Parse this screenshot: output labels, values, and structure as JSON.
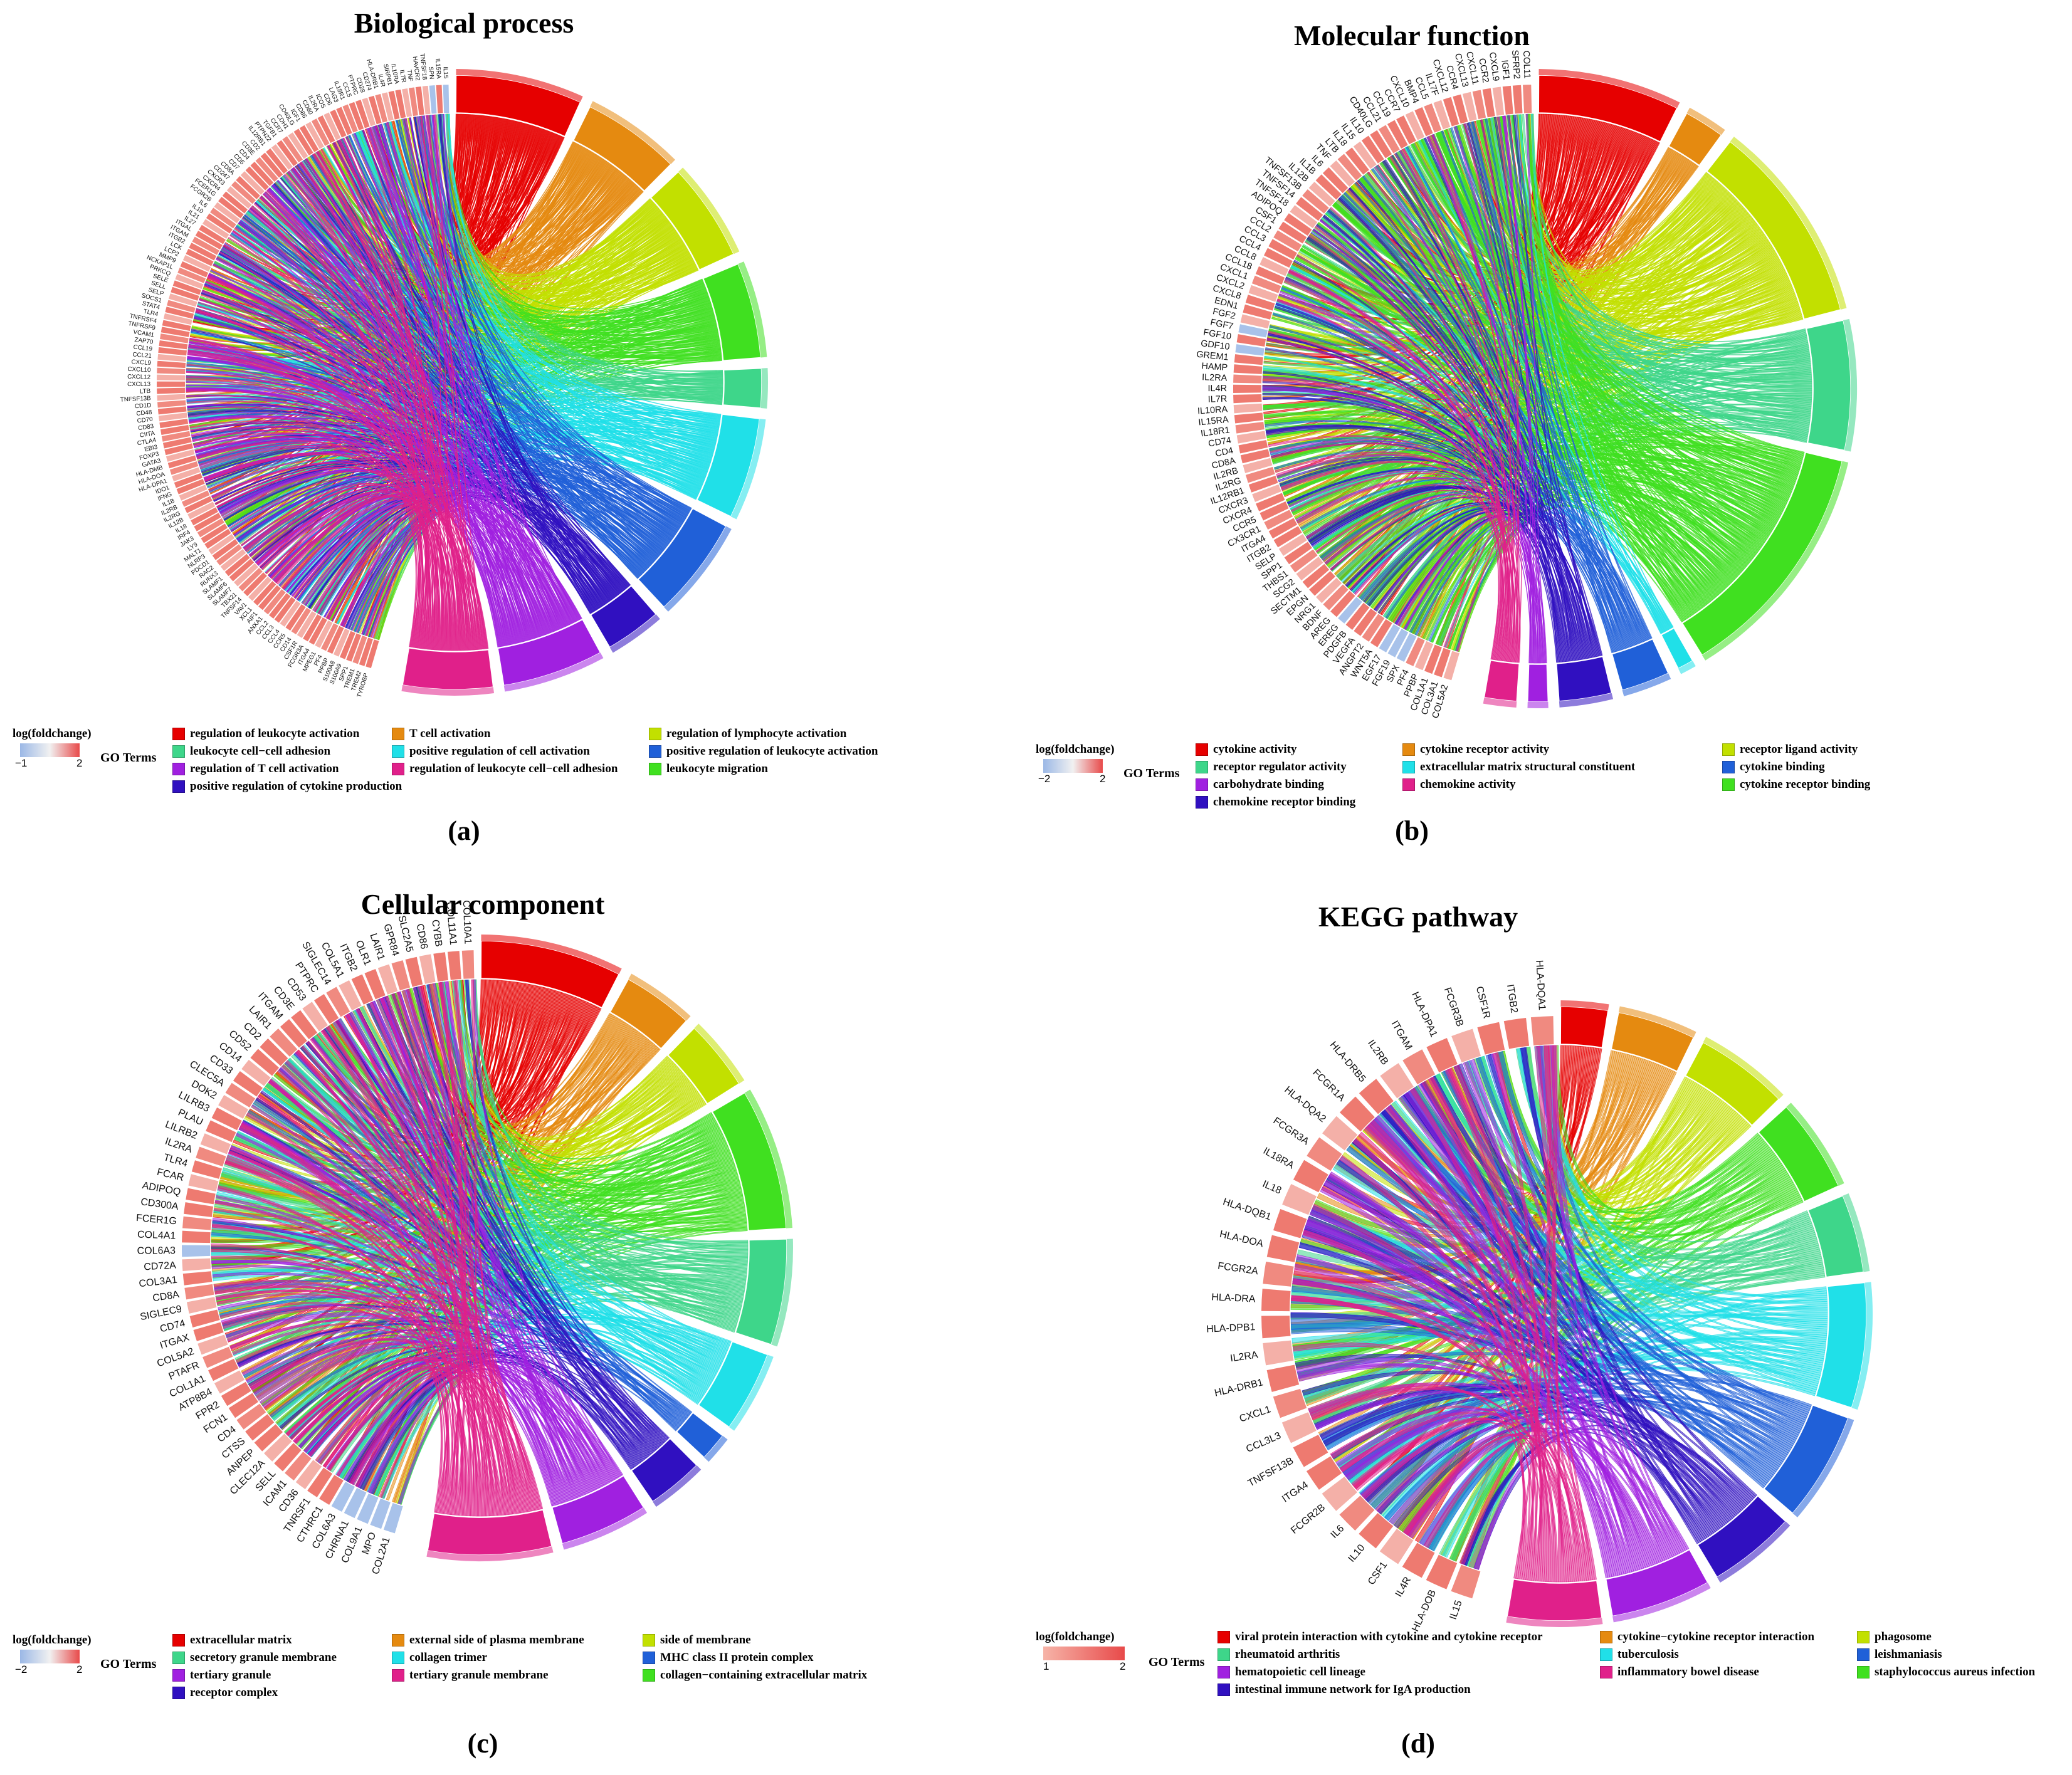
{
  "chart_data": [
    {
      "type": "chord",
      "title": "Biological process",
      "panel_label": "(a)",
      "scale": {
        "title": "log(foldchange)",
        "min_label": "−1",
        "max_label": "2",
        "colors": [
          "#9bb8e6",
          "#f1f1f1",
          "#e84a4a"
        ]
      },
      "legend_title": "GO Terms",
      "terms": [
        {
          "name": "regulation of leukocyte activation",
          "color": "#e60000",
          "weight": 4.5
        },
        {
          "name": "T cell activation",
          "color": "#e58a10",
          "weight": 3.5
        },
        {
          "name": "regulation of lymphocyte activation",
          "color": "#c2e000",
          "weight": 3.5
        },
        {
          "name": "leukocyte cell−cell adhesion",
          "color": "#3ed68a",
          "weight": 1.4
        },
        {
          "name": "positive regulation of cell activation",
          "color": "#20e0e8",
          "weight": 3.6
        },
        {
          "name": "positive regulation of leukocyte activation",
          "color": "#2060d8",
          "weight": 3.6
        },
        {
          "name": "regulation of T cell activation",
          "color": "#a020e0",
          "weight": 3.6
        },
        {
          "name": "regulation of leukocyte cell−cell adhesion",
          "color": "#e0208a",
          "weight": 3.2
        },
        {
          "name": "leukocyte migration",
          "color": "#40e020",
          "weight": 3.4
        },
        {
          "name": "positive regulation of cytokine production",
          "color": "#3010c0",
          "weight": 2.0
        }
      ],
      "arc_order": [
        0,
        1,
        2,
        8,
        3,
        4,
        5,
        9,
        6,
        7
      ],
      "genes": [
        "IL15",
        "IL15RA",
        "SPN",
        "TNFSF18",
        "HAVCR2",
        "TNF",
        "IL7R",
        "IL10RA",
        "SIRPB1",
        "IL4R",
        "HLA-DRB1",
        "CD274",
        "CD28",
        "PTPRC",
        "CCL5",
        "IL18R1",
        "LAG3",
        "CD6",
        "ICOS",
        "IL2RA",
        "CD80",
        "CD86",
        "IGF1",
        "CD40LG",
        "CDH1",
        "CCR7",
        "TGFB1",
        "PTPN22",
        "IL12RB1",
        "CD2",
        "CD3E",
        "CD4",
        "CD5",
        "CD7",
        "CD8A",
        "CD247",
        "CXCR3",
        "CXCR4",
        "FCER1G",
        "FCGR2B",
        "IL6",
        "IL10",
        "IL21",
        "IL27",
        "ITGAL",
        "ITGAM",
        "ITGB2",
        "LCK",
        "LCP2",
        "MMP9",
        "NCKAP1L",
        "PRKCQ",
        "SELE",
        "SELL",
        "SELP",
        "SOCS1",
        "STAT4",
        "TLR4",
        "TNFRSF4",
        "TNFRSF9",
        "VCAM1",
        "ZAP70",
        "CCL19",
        "CCL21",
        "CXCL9",
        "CXCL10",
        "CXCL12",
        "CXCL13",
        "LTB",
        "TNFSF13B",
        "CD1D",
        "CD48",
        "CD70",
        "CD83",
        "CIITA",
        "CTLA4",
        "EBI3",
        "FOXP3",
        "GATA3",
        "HLA-DMB",
        "HLA-DOA",
        "HLA-DPA1",
        "IDO1",
        "IFNG",
        "IL1B",
        "IL2RB",
        "IL2RG",
        "IL12B",
        "IL18",
        "IRF4",
        "JAK3",
        "LY9",
        "MALT1",
        "NLRP3",
        "PDCD1",
        "RAC2",
        "RUNX3",
        "SLAMF1",
        "SLAMF6",
        "SLAMF7",
        "TBX21",
        "TNFSF14",
        "VAV1",
        "XCL1",
        "AIF1",
        "ANXA1",
        "CCL2",
        "CCL3",
        "CCL4",
        "CCR5",
        "CD14",
        "CSF1R",
        "FCGR3A",
        "ITGA4",
        "MPEG1",
        "PF4",
        "PPBP",
        "S100A8",
        "S100A9",
        "SPP1",
        "TREM1",
        "TREM2",
        "TYROBP"
      ],
      "gene_colors": {
        "low": [
          "IL15",
          "SPN"
        ]
      }
    },
    {
      "type": "chord",
      "title": "Molecular function",
      "panel_label": "(b)",
      "scale": {
        "title": "log(foldchange)",
        "min_label": "−2",
        "max_label": "2",
        "colors": [
          "#9bb8e6",
          "#f1f1f1",
          "#e84a4a"
        ]
      },
      "legend_title": "GO Terms",
      "terms": [
        {
          "name": "cytokine activity",
          "color": "#e60000",
          "weight": 3.5
        },
        {
          "name": "cytokine receptor activity",
          "color": "#e58a10",
          "weight": 1.0
        },
        {
          "name": "receptor ligand activity",
          "color": "#c2e000",
          "weight": 5.0
        },
        {
          "name": "receptor regulator activity",
          "color": "#3ed68a",
          "weight": 3.2
        },
        {
          "name": "extracellular matrix structural constituent",
          "color": "#20e0e8",
          "weight": 0.4
        },
        {
          "name": "cytokine binding",
          "color": "#2060d8",
          "weight": 1.2
        },
        {
          "name": "carbohydrate binding",
          "color": "#a020e0",
          "weight": 0.5
        },
        {
          "name": "chemokine activity",
          "color": "#e0208a",
          "weight": 0.8
        },
        {
          "name": "cytokine receptor binding",
          "color": "#40e020",
          "weight": 6.0
        },
        {
          "name": "chemokine receptor binding",
          "color": "#3010c0",
          "weight": 1.3
        }
      ],
      "arc_order": [
        0,
        1,
        2,
        3,
        8,
        4,
        5,
        9,
        6,
        7
      ],
      "genes": [
        "COL11",
        "SFRP2",
        "IGF1",
        "CXCL9",
        "CCR2",
        "CXCL11",
        "CXCL13",
        "CCR4",
        "CXCL12",
        "IL17F",
        "CCL5",
        "BMP4",
        "CXCL10",
        "CCR7",
        "CCL19",
        "CCL21",
        "CD40LG",
        "IL10",
        "IL15",
        "IL18",
        "LTB",
        "TNF",
        "IL6",
        "IL1B",
        "IL12B",
        "TNFSF13B",
        "TNFSF14",
        "TNFSF18",
        "ADIPOQ",
        "CSF1",
        "CCL2",
        "CCL3",
        "CCL4",
        "CCL8",
        "CCL18",
        "CXCL1",
        "CXCL2",
        "CXCL8",
        "EDN1",
        "FGF2",
        "FGF7",
        "FGF10",
        "GDF10",
        "GREM1",
        "HAMP",
        "IL2RA",
        "IL4R",
        "IL7R",
        "IL10RA",
        "IL15RA",
        "IL18R1",
        "CD74",
        "CD4",
        "CD8A",
        "IL2RB",
        "IL2RG",
        "IL12RB1",
        "CXCR3",
        "CXCR4",
        "CCR5",
        "CX3CR1",
        "ITGA4",
        "ITGB2",
        "SELP",
        "SPP1",
        "THBS1",
        "SCG2",
        "SECTM1",
        "EPGN",
        "NRG1",
        "BDNF",
        "AREG",
        "EREG",
        "PDGFB",
        "VEGFA",
        "ANGPT2",
        "WNT5A",
        "EGF17",
        "FGF19",
        "SPX",
        "PF4",
        "PPBP",
        "COL1A1",
        "COL3A1",
        "COL5A2"
      ],
      "gene_colors": {
        "low": [
          "FGF19",
          "EGF17",
          "GDF10",
          "SPX",
          "FGF7",
          "EREG"
        ]
      }
    },
    {
      "type": "chord",
      "title": "Cellular component",
      "panel_label": "(c)",
      "scale": {
        "title": "log(foldchange)",
        "min_label": "−2",
        "max_label": "2",
        "colors": [
          "#9bb8e6",
          "#f1f1f1",
          "#e84a4a"
        ]
      },
      "legend_title": "GO Terms",
      "terms": [
        {
          "name": "extracellular matrix",
          "color": "#e60000",
          "weight": 4.0
        },
        {
          "name": "external side of plasma membrane",
          "color": "#e58a10",
          "weight": 2.0
        },
        {
          "name": "side of membrane",
          "color": "#c2e000",
          "weight": 2.0
        },
        {
          "name": "secretory granule membrane",
          "color": "#3ed68a",
          "weight": 3.0
        },
        {
          "name": "collagen trimer",
          "color": "#20e0e8",
          "weight": 2.3
        },
        {
          "name": "MHC class II protein complex",
          "color": "#2060d8",
          "weight": 0.8
        },
        {
          "name": "tertiary granule",
          "color": "#a020e0",
          "weight": 2.5
        },
        {
          "name": "tertiary granule membrane",
          "color": "#e0208a",
          "weight": 3.5
        },
        {
          "name": "collagen−containing extracellular matrix",
          "color": "#40e020",
          "weight": 4.0
        },
        {
          "name": "receptor complex",
          "color": "#3010c0",
          "weight": 1.6
        }
      ],
      "arc_order": [
        0,
        1,
        2,
        8,
        3,
        4,
        5,
        9,
        6,
        7
      ],
      "genes": [
        "COL10A1",
        "COL11A1",
        "CYBB",
        "CD86",
        "SLC2A5",
        "GPR84",
        "LAIR1",
        "OLR1",
        "ITGB2",
        "COL5A1",
        "SIGLEC14",
        "PTPRC",
        "CD53",
        "CD3E",
        "ITGAM",
        "LAIR1",
        "CD2",
        "CD52",
        "CD14",
        "CD33",
        "CLEC5A",
        "DOK2",
        "LILRB3",
        "PLAU",
        "LILRB2",
        "IL2RA",
        "TLR4",
        "FCAR",
        "ADIPOQ",
        "CD300A",
        "FCER1G",
        "COL4A1",
        "COL6A3",
        "CD72A",
        "COL3A1",
        "CD8A",
        "SIGLEC9",
        "CD74",
        "ITGAX",
        "COL5A2",
        "PTAFR",
        "COL1A1",
        "ATP8B4",
        "FPR2",
        "FCN1",
        "CD4",
        "CTSS",
        "ANPEP",
        "CLEC12A",
        "SELL",
        "ICAM1",
        "CD36",
        "TNRSF1",
        "CTHRC1",
        "COL6A3",
        "CHRNA1",
        "COL9A1",
        "MPO",
        "COL2A1"
      ],
      "gene_colors": {
        "low": [
          "COL2A1",
          "MPO",
          "COL9A1",
          "CHRNA1",
          "COL6A3"
        ]
      }
    },
    {
      "type": "chord",
      "title": "KEGG pathway",
      "panel_label": "(d)",
      "scale": {
        "title": "log(foldchange)",
        "min_label": "1",
        "max_label": "2",
        "colors": [
          "#f6b4a8",
          "#e84a4a"
        ]
      },
      "legend_title": "GO Terms",
      "terms": [
        {
          "name": "viral protein interaction with cytokine and cytokine receptor",
          "color": "#e60000",
          "weight": 1.5
        },
        {
          "name": "cytokine−cytokine receptor interaction",
          "color": "#e58a10",
          "weight": 2.5
        },
        {
          "name": "phagosome",
          "color": "#c2e000",
          "weight": 3.0
        },
        {
          "name": "rheumatoid arthritis",
          "color": "#3ed68a",
          "weight": 2.5
        },
        {
          "name": "tuberculosis",
          "color": "#20e0e8",
          "weight": 4.0
        },
        {
          "name": "leishmaniasis",
          "color": "#2060d8",
          "weight": 3.5
        },
        {
          "name": "hematopoietic cell lineage",
          "color": "#a020e0",
          "weight": 3.2
        },
        {
          "name": "inflammatory bowel disease",
          "color": "#e0208a",
          "weight": 3.0
        },
        {
          "name": "staphylococcus aureus infection",
          "color": "#40e020",
          "weight": 3.0
        },
        {
          "name": "intestinal immune network for IgA production",
          "color": "#3010c0",
          "weight": 2.8
        }
      ],
      "arc_order": [
        0,
        1,
        2,
        8,
        3,
        4,
        5,
        9,
        6,
        7
      ],
      "genes": [
        "HLA-DQA1",
        "ITGB2",
        "CSF1R",
        "FCGR3B",
        "HLA-DPA1",
        "ITGAM",
        "IL2RB",
        "HLA-DRB5",
        "FCGR1A",
        "HLA-DQA2",
        "FCGR3A",
        "IL18RA",
        "IL18",
        "HLA-DQB1",
        "HLA-DOA",
        "FCGR2A",
        "HLA-DRA",
        "HLA-DPB1",
        "IL2RA",
        "HLA-DRB1",
        "CXCL1",
        "CCL3L3",
        "TNFSF13B",
        "ITGA4",
        "FCGR2B",
        "IL6",
        "IL10",
        "CSF1",
        "IL4R",
        "HLA-DOB",
        "IL15"
      ],
      "gene_colors": {
        "low": []
      }
    }
  ]
}
